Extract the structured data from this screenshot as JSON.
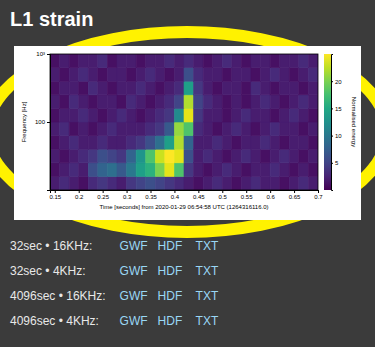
{
  "page": {
    "title": "L1 strain",
    "rows": [
      {
        "label": "32sec • 16KHz:",
        "links": [
          "GWF",
          "HDF",
          "TXT"
        ]
      },
      {
        "label": "32sec • 4KHz:",
        "links": [
          "GWF",
          "HDF",
          "TXT"
        ]
      },
      {
        "label": "4096sec • 16KHz:",
        "links": [
          "GWF",
          "HDF",
          "TXT"
        ]
      },
      {
        "label": "4096sec • 4KHz:",
        "links": [
          "GWF",
          "HDF",
          "TXT"
        ]
      }
    ]
  },
  "chart_data": {
    "type": "heatmap",
    "xlabel": "Time [seconds] from 2020-01-29 06:54:58 UTC (1264316116.0)",
    "ylabel": "Frequency [Hz]",
    "xlim": [
      0.14,
      0.7
    ],
    "xticks": [
      0.15,
      0.2,
      0.25,
      0.3,
      0.35,
      0.4,
      0.45,
      0.5,
      0.55,
      0.6,
      0.65,
      0.7
    ],
    "ylim": [
      10,
      1000
    ],
    "yticks": [
      100,
      {
        "value": 1000,
        "label": "10³"
      }
    ],
    "log": "y",
    "x_edges": [
      0.14,
      0.16,
      0.18,
      0.2,
      0.22,
      0.24,
      0.26,
      0.28,
      0.3,
      0.32,
      0.34,
      0.36,
      0.38,
      0.4,
      0.42,
      0.44,
      0.46,
      0.48,
      0.5,
      0.52,
      0.54,
      0.56,
      0.58,
      0.6,
      0.62,
      0.64,
      0.66,
      0.68,
      0.7
    ],
    "y_edges": [
      10,
      15.8,
      25.1,
      39.8,
      63.1,
      100,
      158,
      251,
      398,
      631,
      1000
    ],
    "cells": [
      [
        2,
        3,
        2,
        1,
        3,
        4,
        3,
        2,
        4,
        5,
        6,
        5,
        4,
        3,
        2,
        1,
        2,
        3,
        2,
        1,
        2,
        3,
        2,
        2,
        1,
        2,
        3,
        2
      ],
      [
        1,
        2,
        3,
        2,
        6,
        8,
        9,
        7,
        10,
        14,
        16,
        20,
        24,
        18,
        4,
        2,
        1,
        2,
        3,
        2,
        1,
        2,
        2,
        3,
        2,
        1,
        2,
        1
      ],
      [
        2,
        1,
        2,
        3,
        4,
        6,
        5,
        4,
        8,
        13,
        18,
        23,
        25,
        24,
        6,
        2,
        3,
        2,
        1,
        2,
        3,
        2,
        1,
        2,
        3,
        2,
        1,
        2
      ],
      [
        1,
        2,
        3,
        2,
        2,
        3,
        2,
        2,
        3,
        4,
        6,
        9,
        14,
        22,
        8,
        2,
        2,
        3,
        2,
        1,
        2,
        2,
        3,
        2,
        1,
        2,
        2,
        1
      ],
      [
        2,
        3,
        1,
        2,
        1,
        2,
        3,
        2,
        2,
        2,
        3,
        4,
        7,
        21,
        18,
        3,
        2,
        1,
        2,
        3,
        2,
        1,
        2,
        3,
        2,
        2,
        1,
        2
      ],
      [
        1,
        2,
        2,
        3,
        2,
        1,
        2,
        3,
        2,
        1,
        2,
        3,
        4,
        12,
        24,
        4,
        2,
        2,
        1,
        2,
        3,
        2,
        2,
        1,
        2,
        3,
        2,
        1
      ],
      [
        2,
        1,
        3,
        2,
        1,
        2,
        2,
        1,
        3,
        2,
        1,
        2,
        3,
        5,
        22,
        5,
        3,
        2,
        1,
        2,
        1,
        2,
        3,
        2,
        1,
        2,
        3,
        2
      ],
      [
        1,
        2,
        2,
        1,
        3,
        2,
        1,
        2,
        2,
        3,
        2,
        1,
        2,
        3,
        14,
        4,
        2,
        1,
        2,
        2,
        1,
        3,
        2,
        1,
        2,
        2,
        1,
        2
      ],
      [
        2,
        1,
        2,
        3,
        2,
        1,
        2,
        2,
        1,
        2,
        3,
        2,
        1,
        2,
        6,
        3,
        2,
        2,
        1,
        2,
        2,
        1,
        2,
        3,
        2,
        1,
        2,
        3
      ],
      [
        1,
        2,
        1,
        2,
        2,
        3,
        1,
        2,
        2,
        1,
        2,
        2,
        3,
        2,
        3,
        2,
        1,
        2,
        3,
        2,
        1,
        2,
        2,
        1,
        2,
        2,
        3,
        2
      ]
    ],
    "colorbar": {
      "label": "Normalised energy",
      "range": [
        0,
        25
      ],
      "ticks": [
        5,
        10,
        15,
        20
      ]
    }
  }
}
